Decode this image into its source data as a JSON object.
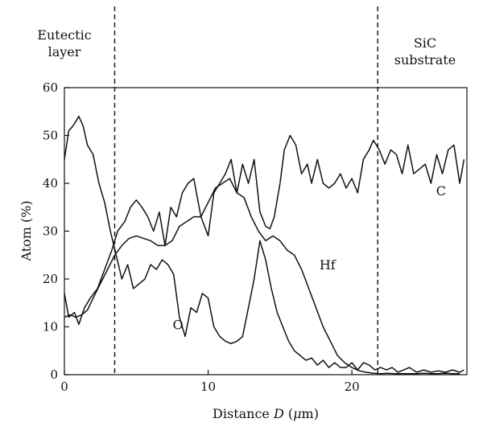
{
  "chart_data": {
    "type": "line",
    "xlabel": "Distance D (μm)",
    "xlabel_parts": {
      "prefix": "Distance ",
      "var": "D",
      "unit_open": " (",
      "mu": "μ",
      "unit_rest": "m)"
    },
    "ylabel": "Atom (%)",
    "xlim": [
      0,
      28
    ],
    "ylim": [
      0,
      60
    ],
    "xticks": [
      0,
      10,
      20
    ],
    "yticks": [
      0,
      10,
      20,
      30,
      40,
      50,
      60
    ],
    "grid": false,
    "legend": "none",
    "region_boundaries": [
      3.5,
      21.8
    ],
    "region_labels": [
      {
        "lines": [
          "Eutectic",
          "layer"
        ]
      },
      {
        "lines": [
          "SiC",
          "substrate"
        ]
      }
    ],
    "series": [
      {
        "name": "C",
        "x": [
          0,
          0.3,
          0.7,
          1.0,
          1.4,
          1.8,
          2.3,
          2.8,
          3.3,
          3.7,
          4.2,
          4.6,
          5.0,
          5.4,
          5.8,
          6.2,
          6.6,
          7.0,
          7.4,
          7.8,
          8.2,
          8.6,
          9.0,
          9.5,
          10.0,
          10.4,
          10.8,
          11.2,
          11.6,
          12.0,
          12.4,
          12.8,
          13.2,
          13.6,
          14.0,
          14.3,
          14.6,
          15.0,
          15.3,
          15.7,
          16.1,
          16.5,
          16.9,
          17.2,
          17.6,
          18.0,
          18.4,
          18.8,
          19.2,
          19.6,
          20.0,
          20.4,
          20.8,
          21.2,
          21.5,
          21.9,
          22.3,
          22.7,
          23.1,
          23.5,
          23.9,
          24.3,
          24.7,
          25.1,
          25.5,
          25.9,
          26.3,
          26.7,
          27.1,
          27.5,
          27.8
        ],
        "y": [
          17,
          12,
          13,
          10.5,
          14,
          16,
          18,
          22,
          26,
          30,
          32,
          35,
          36.5,
          35,
          33,
          30,
          34,
          27,
          35,
          33,
          38,
          40,
          41,
          33,
          29,
          38,
          40,
          42,
          45,
          38,
          44,
          40,
          45,
          34,
          31,
          30.5,
          33,
          40,
          47,
          50,
          48,
          42,
          44,
          40,
          45,
          40,
          39,
          40,
          42,
          39,
          41,
          38,
          45,
          47,
          49,
          47,
          44,
          47,
          46,
          42,
          48,
          42,
          43,
          44,
          40,
          46,
          42,
          47,
          48,
          40,
          45
        ]
      },
      {
        "name": "Hf",
        "x": [
          0,
          0.4,
          0.8,
          1.2,
          1.6,
          2.0,
          2.5,
          3.0,
          3.5,
          4.0,
          4.5,
          5.0,
          5.5,
          6.0,
          6.5,
          7.0,
          7.5,
          8.0,
          8.5,
          9.0,
          9.5,
          10.0,
          10.5,
          11.0,
          11.5,
          12.0,
          12.5,
          13.0,
          13.5,
          14.0,
          14.5,
          15.0,
          15.5,
          16.0,
          16.5,
          17.0,
          17.5,
          18.0,
          18.5,
          19.0,
          19.5,
          20.0,
          20.5,
          21.0,
          21.5,
          22.0,
          22.5,
          23.0,
          23.5,
          24.0,
          24.5,
          25.0,
          25.5,
          26.0,
          26.5,
          27.0,
          27.5
        ],
        "y": [
          12,
          12.5,
          12,
          12.5,
          13.5,
          16,
          19,
          22,
          25,
          27,
          28.5,
          29,
          28.5,
          28,
          27,
          27,
          28,
          31,
          32,
          33,
          33,
          36,
          39,
          40,
          41,
          38,
          37,
          33,
          30,
          28,
          29,
          28,
          26,
          25,
          22,
          18,
          14,
          10,
          7,
          4,
          2.5,
          1.5,
          0.8,
          0.5,
          0.3,
          0.2,
          0.3,
          0.2,
          0.2,
          0.2,
          0.2,
          0.3,
          0.2,
          0.2,
          0.3,
          0.2,
          0.2
        ]
      },
      {
        "name": "O",
        "x": [
          0,
          0.3,
          0.6,
          1.0,
          1.3,
          1.6,
          2.0,
          2.4,
          2.8,
          3.2,
          3.6,
          4.0,
          4.4,
          4.8,
          5.2,
          5.6,
          6.0,
          6.4,
          6.8,
          7.2,
          7.6,
          8.0,
          8.4,
          8.8,
          9.2,
          9.6,
          10.0,
          10.4,
          10.8,
          11.2,
          11.6,
          12.0,
          12.4,
          12.8,
          13.2,
          13.6,
          14.0,
          14.4,
          14.8,
          15.2,
          15.6,
          16.0,
          16.4,
          16.8,
          17.2,
          17.6,
          18.0,
          18.4,
          18.8,
          19.2,
          19.6,
          20.0,
          20.4,
          20.8,
          21.2,
          21.6,
          22.0,
          22.4,
          22.8,
          23.2,
          23.6,
          24.0,
          24.5,
          25.0,
          25.5,
          26.0,
          26.5,
          27.0,
          27.5,
          27.8
        ],
        "y": [
          45,
          51,
          52,
          54,
          52,
          48,
          46,
          40,
          36,
          30,
          25,
          20,
          23,
          18,
          19,
          20,
          23,
          22,
          24,
          23,
          21,
          12,
          8,
          14,
          13,
          17,
          16,
          10,
          8,
          7,
          6.5,
          7,
          8,
          14,
          20,
          28,
          24,
          18,
          13,
          10,
          7,
          5,
          4,
          3,
          3.5,
          2,
          3,
          1.5,
          2.5,
          1.5,
          1.5,
          2.5,
          1,
          2.5,
          2,
          1,
          1.5,
          1,
          1.5,
          0.5,
          1,
          1.5,
          0.5,
          1,
          0.5,
          0.8,
          0.5,
          1,
          0.5,
          1
        ]
      }
    ],
    "series_label_positions": [
      {
        "name": "C",
        "x": 26.2,
        "y": 37.5
      },
      {
        "name": "Hf",
        "x": 18.3,
        "y": 22
      },
      {
        "name": "O",
        "x": 7.9,
        "y": 9.5
      }
    ]
  }
}
